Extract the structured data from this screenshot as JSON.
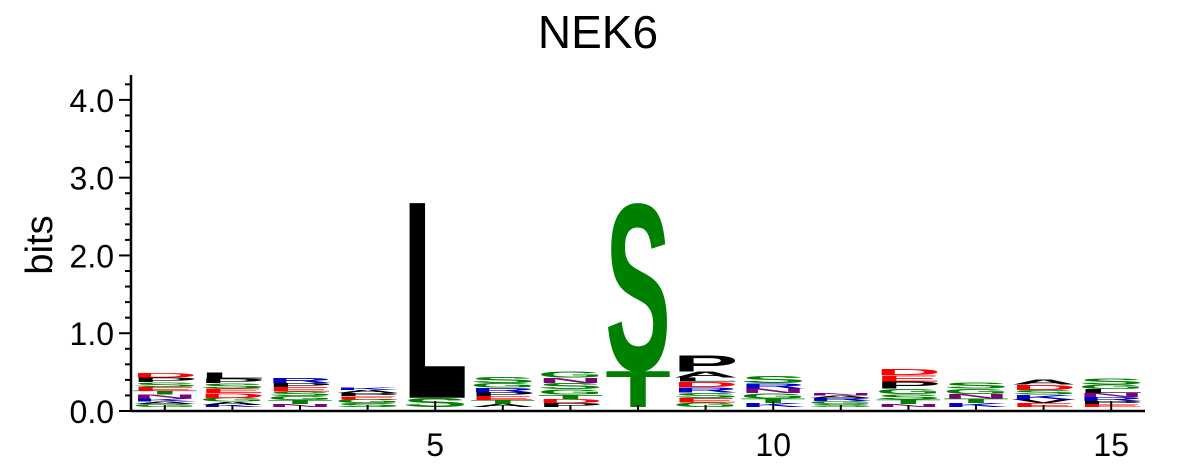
{
  "chart_data": {
    "type": "sequence-logo",
    "title": "NEK6",
    "ylabel": "bits",
    "xlabel": "",
    "ylim": [
      0,
      4.32
    ],
    "yticks": [
      {
        "value": 0.0,
        "label": "0.0"
      },
      {
        "value": 1.0,
        "label": "1.0"
      },
      {
        "value": 2.0,
        "label": "2.0"
      },
      {
        "value": 3.0,
        "label": "3.0"
      },
      {
        "value": 4.0,
        "label": "4.0"
      }
    ],
    "xticks": [
      {
        "value": 5,
        "label": "5"
      },
      {
        "value": 10,
        "label": "10"
      },
      {
        "value": 15,
        "label": "15"
      }
    ],
    "x_range": [
      0.5,
      15.5
    ],
    "colors": {
      "hydrophobic": "#000000",
      "polar": "#008000",
      "basic": "#0000cc",
      "acidic": "#ff0000",
      "amide": "#800080"
    },
    "positions": [
      {
        "pos": 1,
        "letters": [
          {
            "aa": "G",
            "bits": 0.04,
            "color": "#008000"
          },
          {
            "aa": "A",
            "bits": 0.03,
            "color": "#000000"
          },
          {
            "aa": "K",
            "bits": 0.04,
            "color": "#0000cc"
          },
          {
            "aa": "N",
            "bits": 0.05,
            "color": "#800080"
          },
          {
            "aa": "T",
            "bits": 0.05,
            "color": "#008000"
          },
          {
            "aa": "E",
            "bits": 0.05,
            "color": "#ff0000"
          },
          {
            "aa": "S",
            "bits": 0.06,
            "color": "#008000"
          },
          {
            "aa": "P",
            "bits": 0.06,
            "color": "#000000"
          },
          {
            "aa": "D",
            "bits": 0.06,
            "color": "#ff0000"
          }
        ]
      },
      {
        "pos": 2,
        "letters": [
          {
            "aa": "K",
            "bits": 0.03,
            "color": "#0000cc"
          },
          {
            "aa": "A",
            "bits": 0.04,
            "color": "#000000"
          },
          {
            "aa": "G",
            "bits": 0.05,
            "color": "#008000"
          },
          {
            "aa": "D",
            "bits": 0.06,
            "color": "#ff0000"
          },
          {
            "aa": "E",
            "bits": 0.06,
            "color": "#ff0000"
          },
          {
            "aa": "S",
            "bits": 0.07,
            "color": "#008000"
          },
          {
            "aa": "P",
            "bits": 0.06,
            "color": "#000000"
          },
          {
            "aa": "L",
            "bits": 0.08,
            "color": "#000000"
          }
        ]
      },
      {
        "pos": 3,
        "letters": [
          {
            "aa": "N",
            "bits": 0.04,
            "color": "#800080"
          },
          {
            "aa": "T",
            "bits": 0.05,
            "color": "#008000"
          },
          {
            "aa": "G",
            "bits": 0.05,
            "color": "#008000"
          },
          {
            "aa": "S",
            "bits": 0.06,
            "color": "#008000"
          },
          {
            "aa": "E",
            "bits": 0.06,
            "color": "#ff0000"
          },
          {
            "aa": "P",
            "bits": 0.05,
            "color": "#000000"
          },
          {
            "aa": "R",
            "bits": 0.07,
            "color": "#0000cc"
          }
        ]
      },
      {
        "pos": 4,
        "letters": [
          {
            "aa": "S",
            "bits": 0.05,
            "color": "#008000"
          },
          {
            "aa": "G",
            "bits": 0.05,
            "color": "#008000"
          },
          {
            "aa": "E",
            "bits": 0.04,
            "color": "#ff0000"
          },
          {
            "aa": "P",
            "bits": 0.04,
            "color": "#000000"
          },
          {
            "aa": "A",
            "bits": 0.04,
            "color": "#000000"
          },
          {
            "aa": "K",
            "bits": 0.03,
            "color": "#0000cc"
          }
        ]
      },
      {
        "pos": 5,
        "letters": [
          {
            "aa": "S",
            "bits": 0.12,
            "color": "#008000"
          },
          {
            "aa": "L",
            "bits": 2.62,
            "color": "#000000"
          }
        ]
      },
      {
        "pos": 6,
        "letters": [
          {
            "aa": "A",
            "bits": 0.04,
            "color": "#000000"
          },
          {
            "aa": "T",
            "bits": 0.05,
            "color": "#008000"
          },
          {
            "aa": "E",
            "bits": 0.05,
            "color": "#ff0000"
          },
          {
            "aa": "P",
            "bits": 0.05,
            "color": "#000000"
          },
          {
            "aa": "R",
            "bits": 0.06,
            "color": "#0000cc"
          },
          {
            "aa": "G",
            "bits": 0.06,
            "color": "#008000"
          },
          {
            "aa": "S",
            "bits": 0.08,
            "color": "#008000"
          }
        ]
      },
      {
        "pos": 7,
        "letters": [
          {
            "aa": "P",
            "bits": 0.05,
            "color": "#000000"
          },
          {
            "aa": "D",
            "bits": 0.05,
            "color": "#ff0000"
          },
          {
            "aa": "T",
            "bits": 0.06,
            "color": "#008000"
          },
          {
            "aa": "G",
            "bits": 0.07,
            "color": "#008000"
          },
          {
            "aa": "S",
            "bits": 0.08,
            "color": "#008000"
          },
          {
            "aa": "N",
            "bits": 0.07,
            "color": "#800080"
          },
          {
            "aa": "G",
            "bits": 0.08,
            "color": "#008000"
          }
        ]
      },
      {
        "pos": 8,
        "letters": [
          {
            "aa": "T",
            "bits": 0.48,
            "color": "#008000"
          },
          {
            "aa": "S",
            "bits": 2.21,
            "color": "#008000"
          }
        ]
      },
      {
        "pos": 9,
        "letters": [
          {
            "aa": "G",
            "bits": 0.06,
            "color": "#008000"
          },
          {
            "aa": "E",
            "bits": 0.06,
            "color": "#ff0000"
          },
          {
            "aa": "S",
            "bits": 0.07,
            "color": "#008000"
          },
          {
            "aa": "R",
            "bits": 0.07,
            "color": "#0000cc"
          },
          {
            "aa": "D",
            "bits": 0.07,
            "color": "#ff0000"
          },
          {
            "aa": "L",
            "bits": 0.05,
            "color": "#000000"
          },
          {
            "aa": "A",
            "bits": 0.08,
            "color": "#000000"
          },
          {
            "aa": "P",
            "bits": 0.21,
            "color": "#000000"
          }
        ]
      },
      {
        "pos": 10,
        "letters": [
          {
            "aa": "K",
            "bits": 0.05,
            "color": "#0000cc"
          },
          {
            "aa": "T",
            "bits": 0.06,
            "color": "#008000"
          },
          {
            "aa": "G",
            "bits": 0.07,
            "color": "#008000"
          },
          {
            "aa": "N",
            "bits": 0.06,
            "color": "#800080"
          },
          {
            "aa": "R",
            "bits": 0.07,
            "color": "#0000cc"
          },
          {
            "aa": "S",
            "bits": 0.09,
            "color": "#008000"
          }
        ]
      },
      {
        "pos": 11,
        "letters": [
          {
            "aa": "S",
            "bits": 0.04,
            "color": "#008000"
          },
          {
            "aa": "G",
            "bits": 0.04,
            "color": "#008000"
          },
          {
            "aa": "R",
            "bits": 0.04,
            "color": "#0000cc"
          },
          {
            "aa": "A",
            "bits": 0.03,
            "color": "#000000"
          },
          {
            "aa": "N",
            "bits": 0.03,
            "color": "#800080"
          }
        ]
      },
      {
        "pos": 12,
        "letters": [
          {
            "aa": "N",
            "bits": 0.04,
            "color": "#800080"
          },
          {
            "aa": "T",
            "bits": 0.06,
            "color": "#008000"
          },
          {
            "aa": "S",
            "bits": 0.07,
            "color": "#008000"
          },
          {
            "aa": "G",
            "bits": 0.07,
            "color": "#008000"
          },
          {
            "aa": "P",
            "bits": 0.09,
            "color": "#000000"
          },
          {
            "aa": "E",
            "bits": 0.08,
            "color": "#ff0000"
          },
          {
            "aa": "D",
            "bits": 0.08,
            "color": "#ff0000"
          }
        ]
      },
      {
        "pos": 13,
        "letters": [
          {
            "aa": "K",
            "bits": 0.05,
            "color": "#0000cc"
          },
          {
            "aa": "T",
            "bits": 0.06,
            "color": "#008000"
          },
          {
            "aa": "N",
            "bits": 0.06,
            "color": "#800080"
          },
          {
            "aa": "G",
            "bits": 0.07,
            "color": "#008000"
          },
          {
            "aa": "S",
            "bits": 0.08,
            "color": "#008000"
          }
        ]
      },
      {
        "pos": 14,
        "letters": [
          {
            "aa": "E",
            "bits": 0.05,
            "color": "#ff0000"
          },
          {
            "aa": "V",
            "bits": 0.05,
            "color": "#000000"
          },
          {
            "aa": "K",
            "bits": 0.06,
            "color": "#0000cc"
          },
          {
            "aa": "S",
            "bits": 0.06,
            "color": "#008000"
          },
          {
            "aa": "D",
            "bits": 0.07,
            "color": "#ff0000"
          },
          {
            "aa": "A",
            "bits": 0.07,
            "color": "#000000"
          }
        ]
      },
      {
        "pos": 15,
        "letters": [
          {
            "aa": "E",
            "bits": 0.04,
            "color": "#ff0000"
          },
          {
            "aa": "P",
            "bits": 0.04,
            "color": "#000000"
          },
          {
            "aa": "R",
            "bits": 0.05,
            "color": "#0000cc"
          },
          {
            "aa": "N",
            "bits": 0.05,
            "color": "#800080"
          },
          {
            "aa": "L",
            "bits": 0.05,
            "color": "#000000"
          },
          {
            "aa": "G",
            "bits": 0.06,
            "color": "#008000"
          },
          {
            "aa": "S",
            "bits": 0.08,
            "color": "#008000"
          }
        ]
      }
    ]
  }
}
